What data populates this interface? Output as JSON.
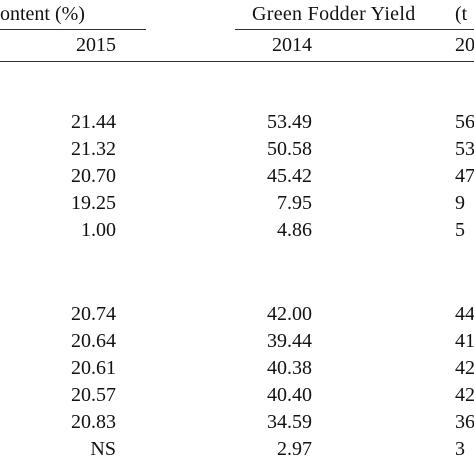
{
  "header": {
    "group1_label": "ontent (%)",
    "group2_label": "Green Fodder Yield",
    "group2_unit_partial": "(t",
    "years": [
      "2015",
      "2014",
      "20"
    ]
  },
  "rows_block1": [
    {
      "c2015": "21.44",
      "c2014": "53.49",
      "c_next": "56"
    },
    {
      "c2015": "21.32",
      "c2014": "50.58",
      "c_next": "53"
    },
    {
      "c2015": "20.70",
      "c2014": "45.42",
      "c_next": "47"
    },
    {
      "c2015": "19.25",
      "c2014": "7.95",
      "c_next": "9"
    },
    {
      "c2015": "1.00",
      "c2014": "4.86",
      "c_next": "5"
    }
  ],
  "rows_block2": [
    {
      "c2015": "20.74",
      "c2014": "42.00",
      "c_next": "44"
    },
    {
      "c2015": "20.64",
      "c2014": "39.44",
      "c_next": "41"
    },
    {
      "c2015": "20.61",
      "c2014": "40.38",
      "c_next": "42"
    },
    {
      "c2015": "20.57",
      "c2014": "40.40",
      "c_next": "42"
    },
    {
      "c2015": "20.83",
      "c2014": "34.59",
      "c_next": "36"
    },
    {
      "c2015": "NS",
      "c2014": "2.97",
      "c_next": "3"
    }
  ]
}
